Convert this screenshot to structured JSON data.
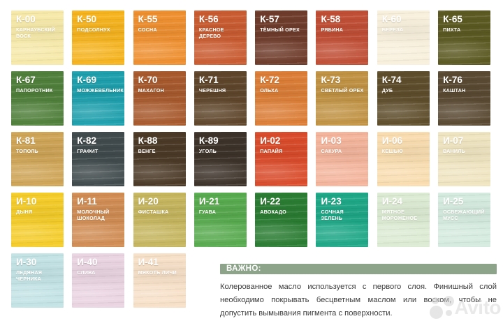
{
  "palette": {
    "swatches": [
      {
        "code": "К-00",
        "name": "КАРНАУБСКИЙ ВОСК",
        "color": "#f6e9a9"
      },
      {
        "code": "К-50",
        "name": "ПОДСОЛНУХ",
        "color": "#f6b41f"
      },
      {
        "code": "К-55",
        "name": "СОСНА",
        "color": "#ef9030"
      },
      {
        "code": "К-56",
        "name": "КРАСНОЕ ДЕРЕВО",
        "color": "#ca5c31"
      },
      {
        "code": "К-57",
        "name": "ТЁМНЫЙ ОРЕХ",
        "color": "#6f3c2b"
      },
      {
        "code": "К-58",
        "name": "РЯБИНА",
        "color": "#c14f36"
      },
      {
        "code": "К-60",
        "name": "БЕРЕЗА",
        "color": "#f8f0dc"
      },
      {
        "code": "К-65",
        "name": "ПИХТА",
        "color": "#5c5a22"
      },
      {
        "code": "К-67",
        "name": "ПАПОРОТНИК",
        "color": "#50803b"
      },
      {
        "code": "К-69",
        "name": "МОЖЖЕВЕЛЬНИК",
        "color": "#1ea0ad"
      },
      {
        "code": "К-70",
        "name": "МАХАГОН",
        "color": "#a85a2d"
      },
      {
        "code": "К-71",
        "name": "ЧЕРЕШНЯ",
        "color": "#5f462b"
      },
      {
        "code": "К-72",
        "name": "ОЛЬХА",
        "color": "#dc7e37"
      },
      {
        "code": "К-73",
        "name": "СВЕТЛЫЙ ОРЕХ",
        "color": "#c19344"
      },
      {
        "code": "К-74",
        "name": "ДУБ",
        "color": "#5f4e2c"
      },
      {
        "code": "К-76",
        "name": "КАШТАН",
        "color": "#5a4a33"
      },
      {
        "code": "К-81",
        "name": "ТОПОЛЬ",
        "color": "#cfa557"
      },
      {
        "code": "К-82",
        "name": "ГРАФИТ",
        "color": "#414b4d"
      },
      {
        "code": "К-88",
        "name": "ВЕНГЕ",
        "color": "#4c3a27"
      },
      {
        "code": "К-89",
        "name": "УГОЛЬ",
        "color": "#3d332a"
      },
      {
        "code": "И-02",
        "name": "ПАПАЙЯ",
        "color": "#da4c2b"
      },
      {
        "code": "И-03",
        "name": "САКУРА",
        "color": "#f4b59c"
      },
      {
        "code": "И-06",
        "name": "КЕШЬЮ",
        "color": "#f9ddb0"
      },
      {
        "code": "И-07",
        "name": "ВАНИЛЬ",
        "color": "#f0e5c1"
      },
      {
        "code": "И-10",
        "name": "ДЫНЯ",
        "color": "#f5cd2a"
      },
      {
        "code": "И-11",
        "name": "МОЛОЧНЫЙ ШОКОЛАД",
        "color": "#d18d54"
      },
      {
        "code": "И-20",
        "name": "ФИСТАШКА",
        "color": "#c6b65f"
      },
      {
        "code": "И-21",
        "name": "ГУАВА",
        "color": "#58ab4f"
      },
      {
        "code": "И-22",
        "name": "АВОКАДО",
        "color": "#2b7d33"
      },
      {
        "code": "И-23",
        "name": "СОЧНАЯ ЗЕЛЕНЬ",
        "color": "#1ea887"
      },
      {
        "code": "И-24",
        "name": "МЯТНОЕ МОРОЖЕНОЕ",
        "color": "#dcebd3"
      },
      {
        "code": "И-25",
        "name": "ОСВЕЖАЮЩИЙ МУСС",
        "color": "#d5ebdf"
      },
      {
        "code": "И-30",
        "name": "ЛЕДЯНАЯ ЧЕРНИКА",
        "color": "#c3e3e5"
      },
      {
        "code": "И-40",
        "name": "СЛИВА",
        "color": "#ead4e2"
      },
      {
        "code": "И-41",
        "name": "МЯКОТЬ ЛИЧИ",
        "color": "#f7e0c8"
      }
    ]
  },
  "note": {
    "badge_label": "ВАЖНО:",
    "badge_bg": "#8da48a",
    "body": "Колерованное масло используется с первого слоя. Финишный слой необходимо покрывать бесцветным маслом или воском, чтобы не допустить вымывания пигмента с поверхности."
  },
  "watermark": {
    "label": "Avito"
  }
}
